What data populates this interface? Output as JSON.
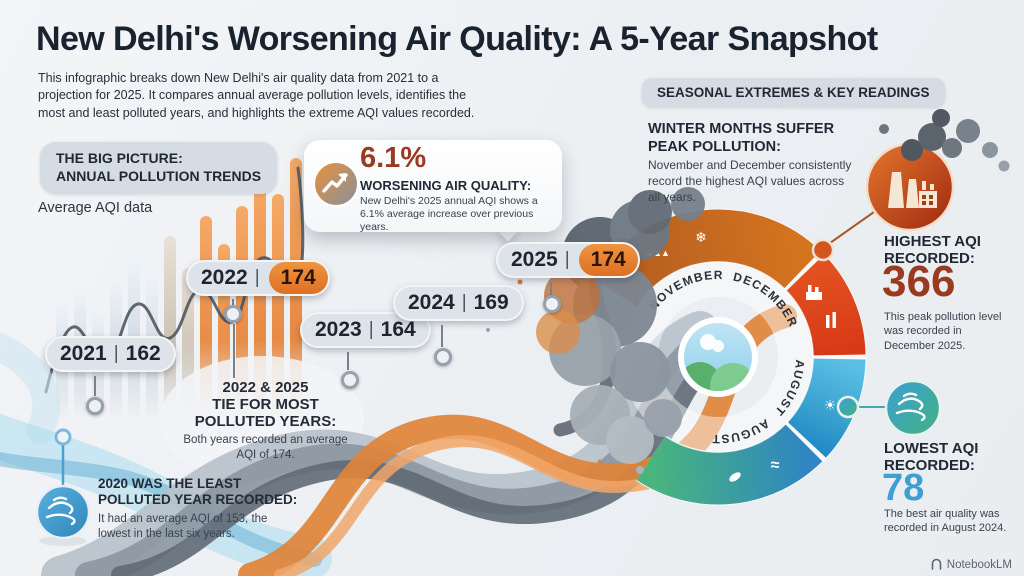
{
  "page": {
    "title": "New Delhi's Worsening Air Quality: A 5-Year Snapshot",
    "subtitle": "This infographic breaks down New Delhi's air quality data from 2021 to a projection for 2025. It compares annual average pollution levels, identifies the most and least polluted years, and highlights the extreme AQI values recorded.",
    "watermark": "NotebookLM"
  },
  "labels": {
    "separator": "|"
  },
  "left_panel": {
    "section_title_line1": "THE BIG PICTURE:",
    "section_title_line2": "ANNUAL POLLUTION TRENDS",
    "caption": "Average AQI data"
  },
  "stat_callout": {
    "value": "6.1%",
    "heading": "WORSENING AIR QUALITY:",
    "body": "New Delhi's 2025 annual AQI shows a 6.1% average increase over previous years."
  },
  "year_markers": [
    {
      "year": "2021",
      "value": "162"
    },
    {
      "year": "2022",
      "value": "174"
    },
    {
      "year": "2023",
      "value": "164"
    },
    {
      "year": "2024",
      "value": "169"
    },
    {
      "year": "2025",
      "value": "174"
    }
  ],
  "callouts": {
    "tie": {
      "heading_line1": "2022 & 2025",
      "heading_line2": "TIE FOR MOST",
      "heading_line3": "POLLUTED YEARS:",
      "body": "Both years recorded an average AQI of 174."
    },
    "least": {
      "heading_line1": "2020 WAS THE LEAST",
      "heading_line2": "POLLUTED YEAR RECORDED:",
      "body": "It had an average AQI of 153, the lowest in the last six years."
    }
  },
  "right_panel": {
    "section_title": "SEASONAL EXTREMES & KEY READINGS",
    "winter": {
      "heading_line1": "WINTER MONTHS SUFFER",
      "heading_line2": "PEAK POLLUTION:",
      "body": "November and December consistently record the highest AQI values across all years."
    },
    "highest": {
      "label_line1": "HIGHEST AQI",
      "label_line2": "RECORDED:",
      "value": "366",
      "body": "This peak pollution level was recorded in December 2025."
    },
    "lowest": {
      "label_line1": "LOWEST AQI",
      "label_line2": "RECORDED:",
      "value": "78",
      "body": "The best air quality was recorded in August 2024."
    },
    "ring_months": [
      "NOVEMBER",
      "DECEMBER",
      "AUGUST",
      "AUGUST"
    ]
  },
  "icons": {
    "snowflake": "❄",
    "sun": "☀",
    "waves": "≈",
    "trees": "▲▲▲"
  },
  "colors": {
    "accent_orange": "#DE6F24",
    "accent_red": "#9C3921",
    "accent_blue": "#3D9FD2",
    "ring_orange": "#C9661F",
    "ring_red": "#D32F12",
    "ring_blue": "#2089C2",
    "ring_green": "#49B57D",
    "ink": "#1B2430"
  },
  "chart_data": {
    "type": "bar",
    "title": "Annual Pollution Trends (Average AQI)",
    "categories": [
      "2021",
      "2022",
      "2023",
      "2024",
      "2025"
    ],
    "values": [
      162,
      174,
      164,
      169,
      174
    ],
    "ylabel": "Average AQI",
    "annotations": {
      "increase_pct": "6.1%",
      "tie_years": [
        "2022",
        "2025"
      ],
      "tie_value": 174,
      "least_year": "2020",
      "least_value": 153,
      "highest_aqi": 366,
      "highest_when": "December 2025",
      "lowest_aqi": 78,
      "lowest_when": "August 2024",
      "peak_months": [
        "NOVEMBER",
        "DECEMBER"
      ],
      "clean_month": "AUGUST"
    },
    "background_bars": {
      "values": [
        118,
        132,
        112,
        144,
        166,
        148,
        184,
        152,
        204,
        176,
        214,
        246,
        226,
        262
      ],
      "colors": [
        "blue",
        "blue",
        "blue",
        "blue",
        "blue",
        "blue",
        "tan",
        "tan",
        "orange",
        "orange",
        "orange",
        "orange",
        "orange",
        "orange"
      ]
    }
  }
}
